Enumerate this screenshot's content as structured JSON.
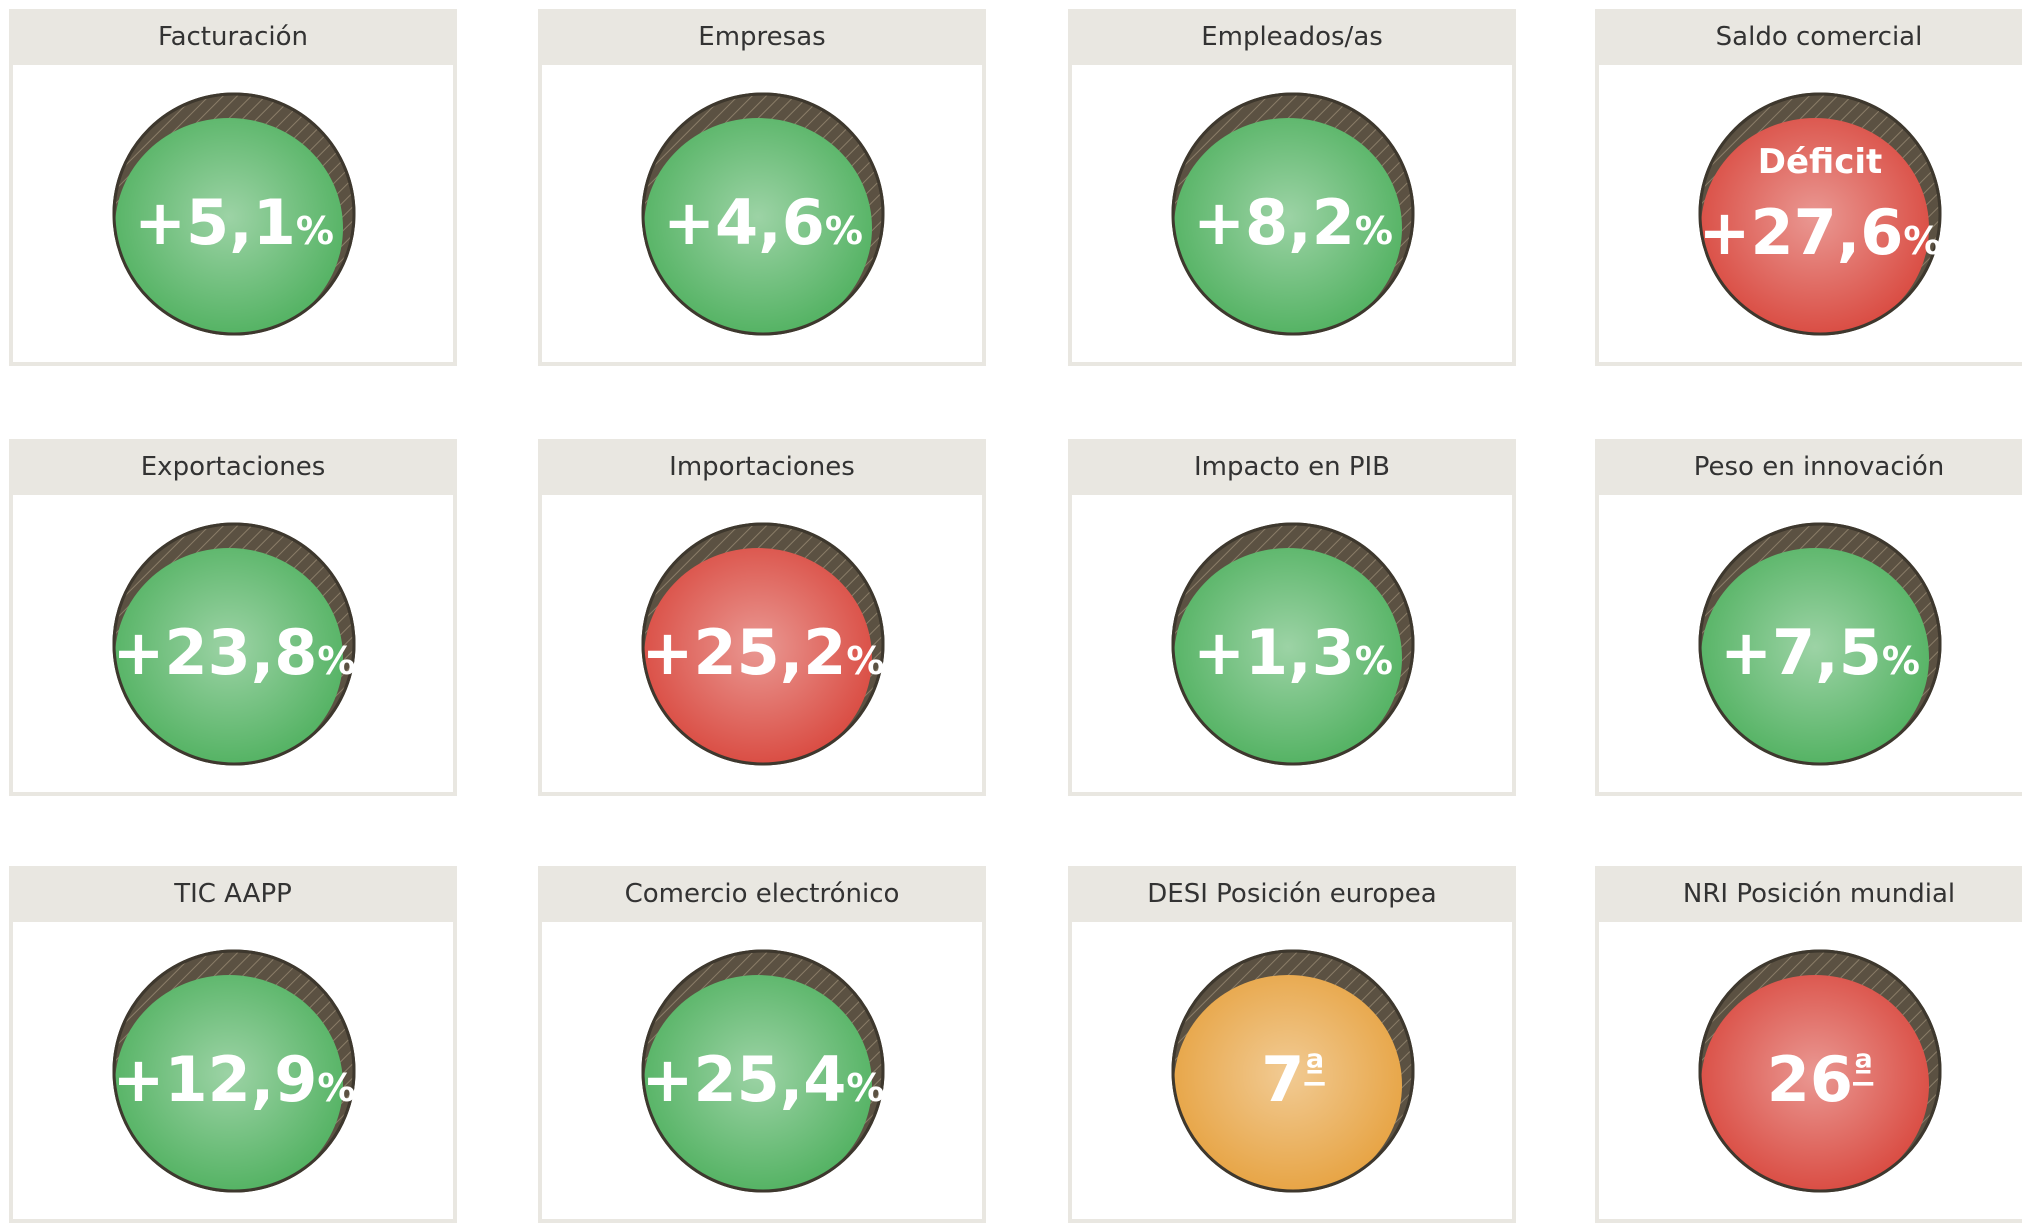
{
  "cards": [
    {
      "title": "Facturación",
      "value": "+5,1",
      "unit": "%",
      "color": "#4caf5c"
    },
    {
      "title": "Empresas",
      "value": "+4,6",
      "unit": "%",
      "color": "#4caf5c"
    },
    {
      "title": "Empleados/as",
      "value": "+8,2",
      "unit": "%",
      "color": "#4caf5c"
    },
    {
      "title": "Saldo comercial",
      "label": "Déficit",
      "value": "+27,6",
      "unit": "%",
      "color": "#d8443a"
    },
    {
      "title": "Exportaciones",
      "value": "+23,8",
      "unit": "%",
      "color": "#4caf5c"
    },
    {
      "title": "Importaciones",
      "value": "+25,2",
      "unit": "%",
      "color": "#d8443a"
    },
    {
      "title": "Impacto en PIB",
      "value": "+1,3",
      "unit": "%",
      "color": "#4caf5c"
    },
    {
      "title": "Peso en innovación",
      "value": "+7,5",
      "unit": "%",
      "color": "#4caf5c"
    },
    {
      "title": "TIC AAPP",
      "value": "+12,9",
      "unit": "%",
      "color": "#4caf5c"
    },
    {
      "title": "Comercio electrónico",
      "value": "+25,4",
      "unit": "%",
      "color": "#4caf5c"
    },
    {
      "title": "DESI Posición europea",
      "value": "7",
      "ordinal": "ª",
      "color": "#e6a03c"
    },
    {
      "title": "NRI Posición mundial",
      "value": "26",
      "ordinal": "ª",
      "color": "#d8443a"
    }
  ]
}
